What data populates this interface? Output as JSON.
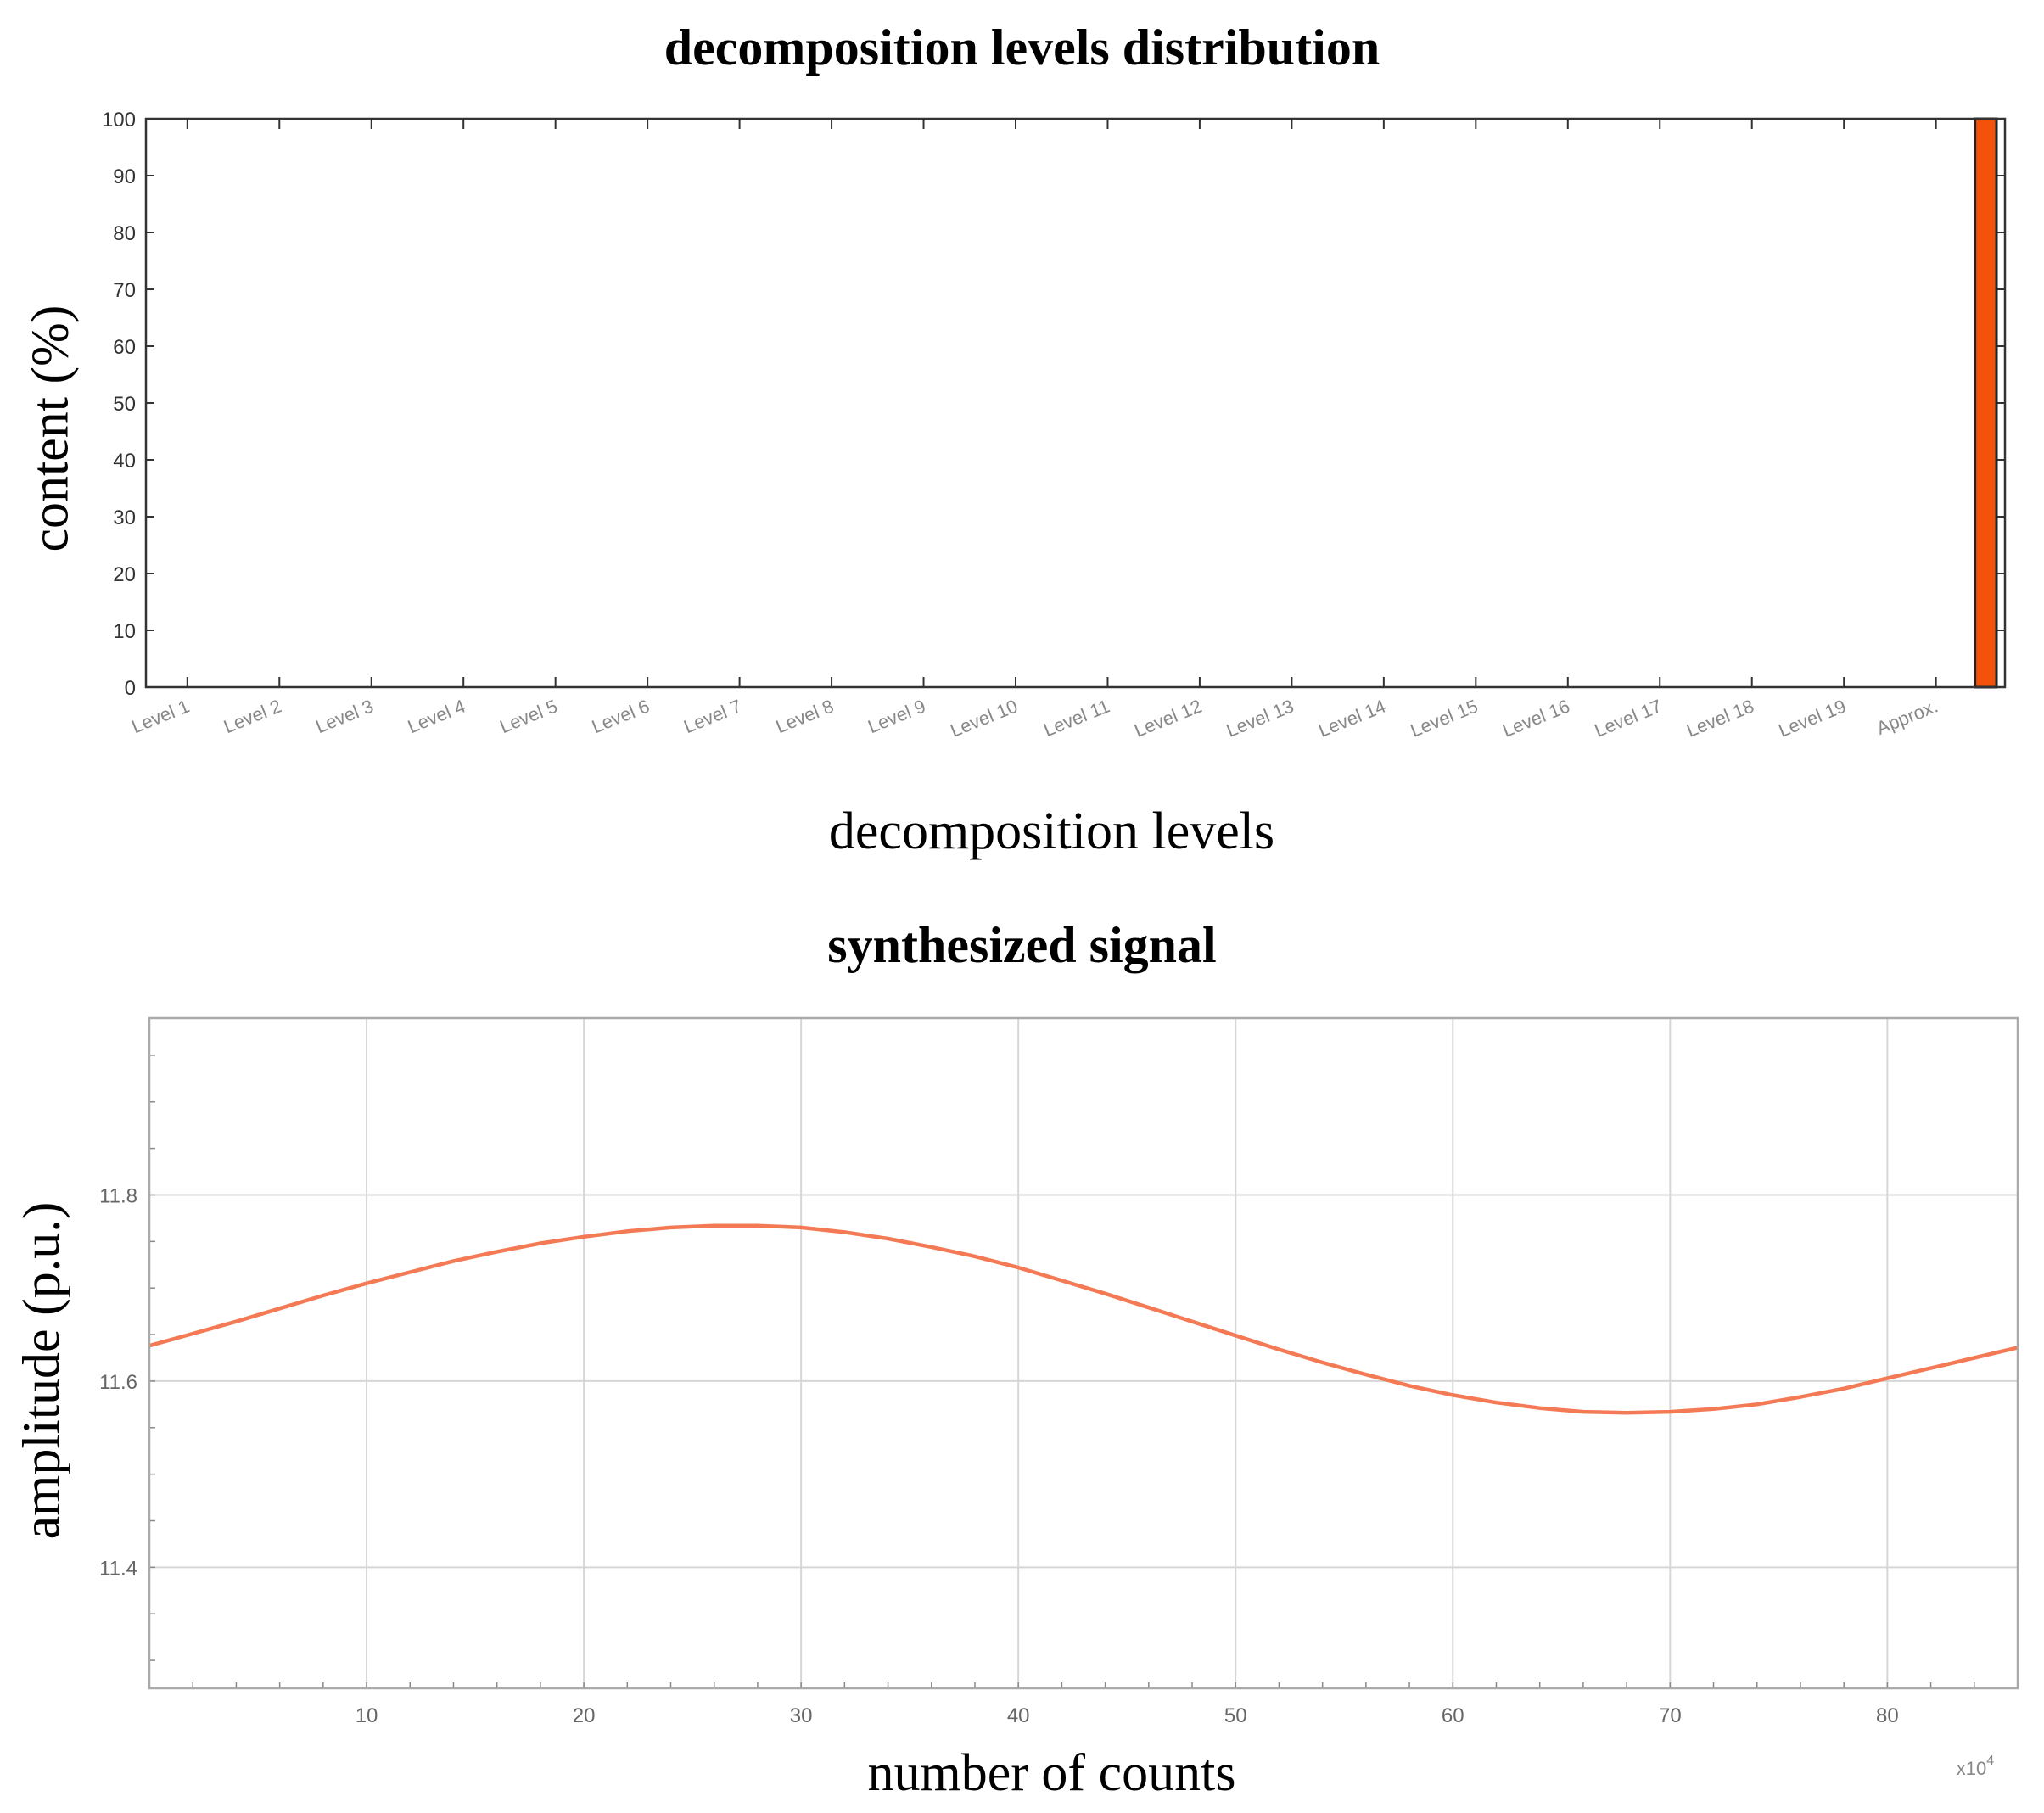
{
  "chart_data": [
    {
      "type": "bar",
      "title": "decomposition levels distribution",
      "xlabel": "decomposition levels",
      "ylabel": "content (%)",
      "categories": [
        "Level 1",
        "Level 2",
        "Level 3",
        "Level 4",
        "Level 5",
        "Level 6",
        "Level 7",
        "Level 8",
        "Level 9",
        "Level 10",
        "Level 11",
        "Level 12",
        "Level 13",
        "Level 14",
        "Level 15",
        "Level 16",
        "Level 17",
        "Level 18",
        "Level 19",
        "Approx."
      ],
      "values": [
        0,
        0,
        0,
        0,
        0,
        0,
        0,
        0,
        0,
        0,
        0,
        0,
        0,
        0,
        0,
        0,
        0,
        0,
        0,
        100
      ],
      "ylim": [
        0,
        100
      ],
      "yticks": [
        0,
        10,
        20,
        30,
        40,
        50,
        60,
        70,
        80,
        90,
        100
      ],
      "bar_color": "#f4510b",
      "grid": false
    },
    {
      "type": "line",
      "title": "synthesized signal",
      "xlabel": "number of counts",
      "ylabel": "amplitude (p.u.)",
      "x_multiplier": "x10",
      "x_multiplier_exp": "4",
      "xlim": [
        0,
        86
      ],
      "ylim": [
        11.27,
        11.99
      ],
      "xticks": [
        10,
        20,
        30,
        40,
        50,
        60,
        70,
        80
      ],
      "yticks": [
        11.4,
        11.6,
        11.8
      ],
      "yticklabels": [
        "11.4",
        "11.6",
        "11.8"
      ],
      "grid": true,
      "line_color": "#f47a55",
      "series": [
        {
          "x": [
            0,
            2,
            4,
            6,
            8,
            10,
            12,
            14,
            16,
            18,
            20,
            22,
            24,
            26,
            28,
            30,
            32,
            34,
            36,
            38,
            40,
            42,
            44,
            46,
            48,
            50,
            52,
            54,
            56,
            58,
            60,
            62,
            64,
            66,
            68,
            70,
            72,
            74,
            76,
            78,
            80,
            82,
            84,
            86
          ],
          "values": [
            11.638,
            11.651,
            11.664,
            11.678,
            11.692,
            11.705,
            11.717,
            11.729,
            11.739,
            11.748,
            11.755,
            11.761,
            11.765,
            11.767,
            11.767,
            11.765,
            11.76,
            11.753,
            11.744,
            11.734,
            11.722,
            11.708,
            11.694,
            11.679,
            11.664,
            11.649,
            11.634,
            11.62,
            11.607,
            11.595,
            11.585,
            11.577,
            11.571,
            11.567,
            11.566,
            11.567,
            11.57,
            11.575,
            11.583,
            11.592,
            11.603,
            11.614,
            11.625,
            11.636
          ]
        }
      ]
    }
  ]
}
